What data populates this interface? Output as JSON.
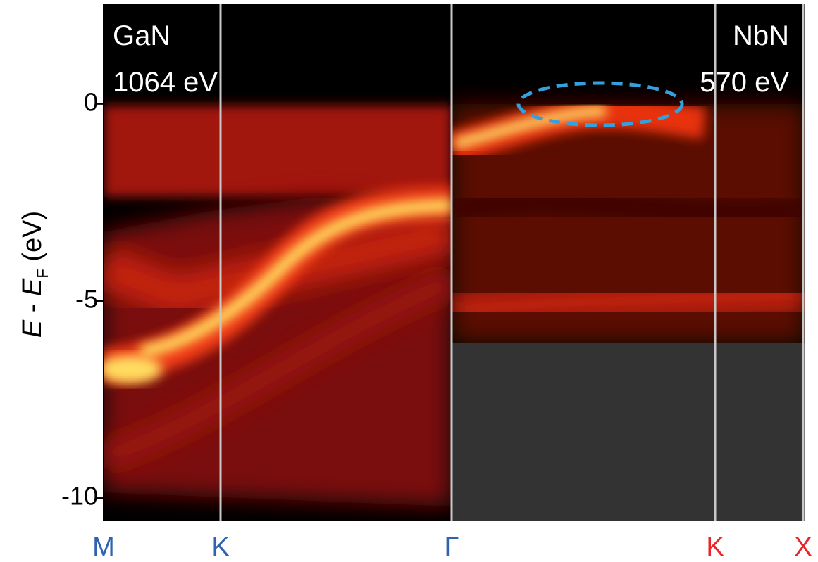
{
  "chart_data": {
    "type": "image",
    "y_label": {
      "var": "E",
      "minus": " - ",
      "ref": "E",
      "sub": "F",
      "unit": " (eV)"
    },
    "ylim": [
      -10.57,
      2.55
    ],
    "yticks": [
      -10,
      -5,
      0
    ],
    "categories": [
      "M",
      "K",
      "Γ",
      "K",
      "X"
    ],
    "category_colors": [
      "#2f63b0",
      "#2f63b0",
      "#2f63b0",
      "#e8262a",
      "#e8262a"
    ],
    "annotations": [
      "GaN",
      "1064 eV",
      "NbN",
      "570 eV"
    ]
  }
}
